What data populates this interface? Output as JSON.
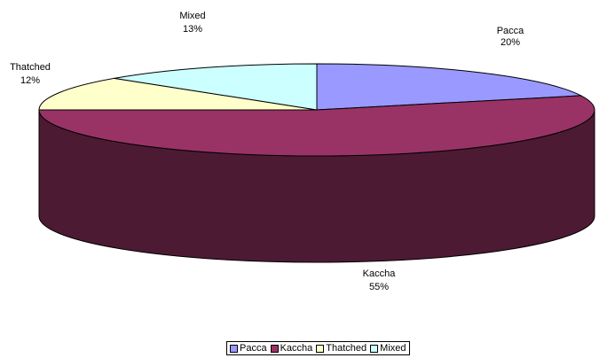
{
  "chart_data": {
    "type": "pie",
    "three_d": true,
    "title": "",
    "start_angle_deg": 0,
    "direction": "clockwise",
    "categories": [
      "Pacca",
      "Kaccha",
      "Thatched",
      "Mixed"
    ],
    "values": [
      20,
      55,
      12,
      13
    ],
    "data_labels": [
      {
        "name": "Pacca",
        "percent": "20%"
      },
      {
        "name": "Kaccha",
        "percent": "55%"
      },
      {
        "name": "Thatched",
        "percent": "12%"
      },
      {
        "name": "Mixed",
        "percent": "13%"
      }
    ],
    "colors": [
      "#9999FF",
      "#993366",
      "#FFFFCC",
      "#CCFFFF"
    ],
    "side_colors": [
      "#5C5C99",
      "#4D1A33",
      "#99997A",
      "#7A9999"
    ],
    "legend": {
      "placement": "bottom",
      "entries": [
        "Pacca",
        "Kaccha",
        "Thatched",
        "Mixed"
      ]
    }
  }
}
